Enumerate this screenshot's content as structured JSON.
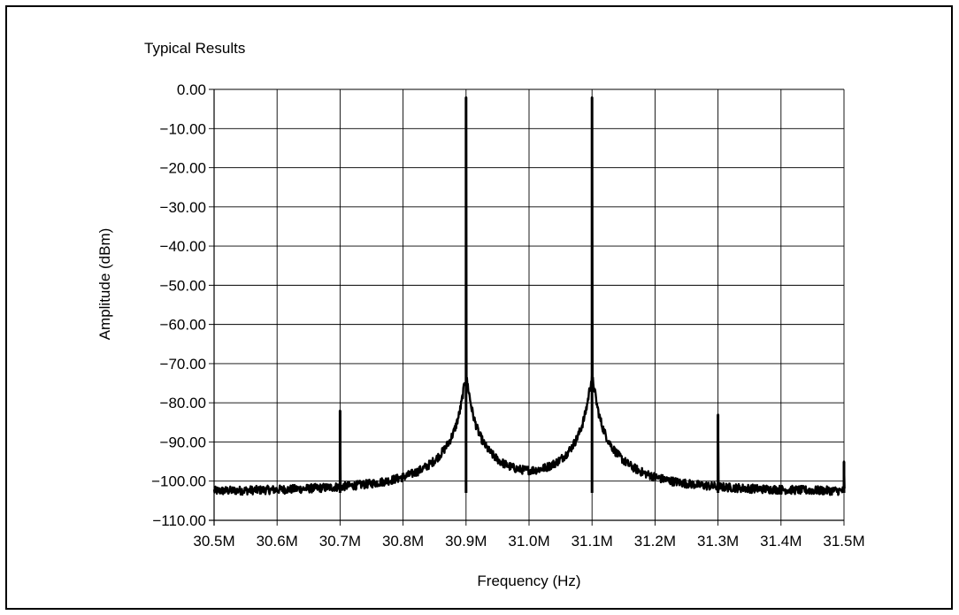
{
  "chart_data": {
    "type": "line",
    "title": "Typical Results",
    "xlabel": "Frequency (Hz)",
    "ylabel": "Amplitude (dBm)",
    "xlim": [
      30.5,
      31.5
    ],
    "ylim": [
      -110,
      0
    ],
    "grid": true,
    "x_ticks": [
      30.5,
      30.6,
      30.7,
      30.8,
      30.9,
      31.0,
      31.1,
      31.2,
      31.3,
      31.4,
      31.5
    ],
    "x_tick_labels": [
      "30.5M",
      "30.6M",
      "30.7M",
      "30.8M",
      "30.9M",
      "31.0M",
      "31.1M",
      "31.2M",
      "31.3M",
      "31.4M",
      "31.5M"
    ],
    "y_ticks": [
      0,
      -10,
      -20,
      -30,
      -40,
      -50,
      -60,
      -70,
      -80,
      -90,
      -100,
      -110
    ],
    "y_tick_labels": [
      "0.00",
      "−10.00",
      "−20.00",
      "−30.00",
      "−40.00",
      "−50.00",
      "−60.00",
      "−70.00",
      "−80.00",
      "−90.00",
      "−100.00",
      "−110.00"
    ],
    "series": [
      {
        "color": "#000000",
        "noise_floor": -103,
        "peaks": [
          {
            "x": 30.9,
            "y": -2
          },
          {
            "x": 31.1,
            "y": -2
          }
        ],
        "spurs": [
          {
            "x": 30.7,
            "y": -82
          },
          {
            "x": 31.3,
            "y": -83
          },
          {
            "x": 31.5,
            "y": -95
          }
        ]
      }
    ]
  }
}
